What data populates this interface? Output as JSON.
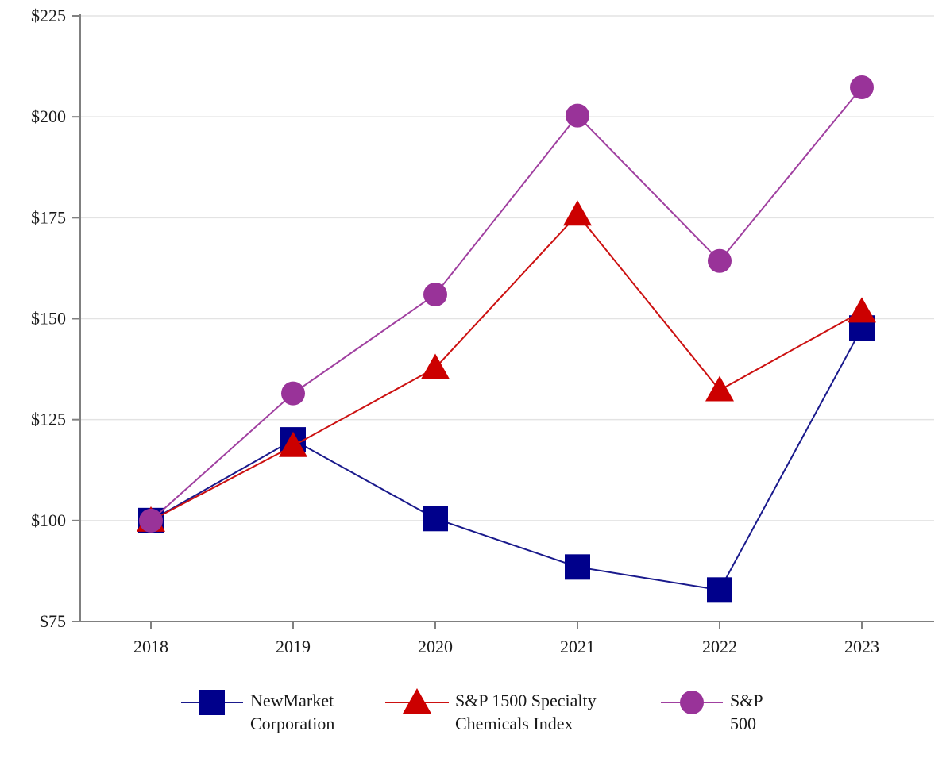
{
  "chart_data": {
    "type": "line",
    "title": "",
    "xlabel": "",
    "ylabel": "",
    "categories": [
      "2018",
      "2019",
      "2020",
      "2021",
      "2022",
      "2023"
    ],
    "ylim": [
      75,
      225
    ],
    "yticks": [
      75,
      100,
      125,
      150,
      175,
      200,
      225
    ],
    "ytick_labels": [
      "$75",
      "$100",
      "$125",
      "$150",
      "$175",
      "$200",
      "$225"
    ],
    "grid": "horizontal",
    "legend_position": "bottom",
    "series": [
      {
        "name_lines": [
          "NewMarket",
          "Corporation"
        ],
        "marker": "square",
        "color": "#00008b",
        "line_color": "#1a1a8c",
        "values": [
          100,
          120,
          100.5,
          88.5,
          82.8,
          147.7
        ]
      },
      {
        "name_lines": [
          "S&P 1500 Specialty",
          "Chemicals Index"
        ],
        "marker": "triangle",
        "color": "#cc0000",
        "line_color": "#cc1111",
        "values": [
          100,
          118.5,
          137.8,
          175.8,
          132.3,
          151.8
        ]
      },
      {
        "name_lines": [
          "S&P",
          "500"
        ],
        "marker": "circle",
        "color": "#993399",
        "line_color": "#a040a0",
        "values": [
          100,
          131.5,
          156,
          200.3,
          164.3,
          207.3
        ]
      }
    ]
  }
}
